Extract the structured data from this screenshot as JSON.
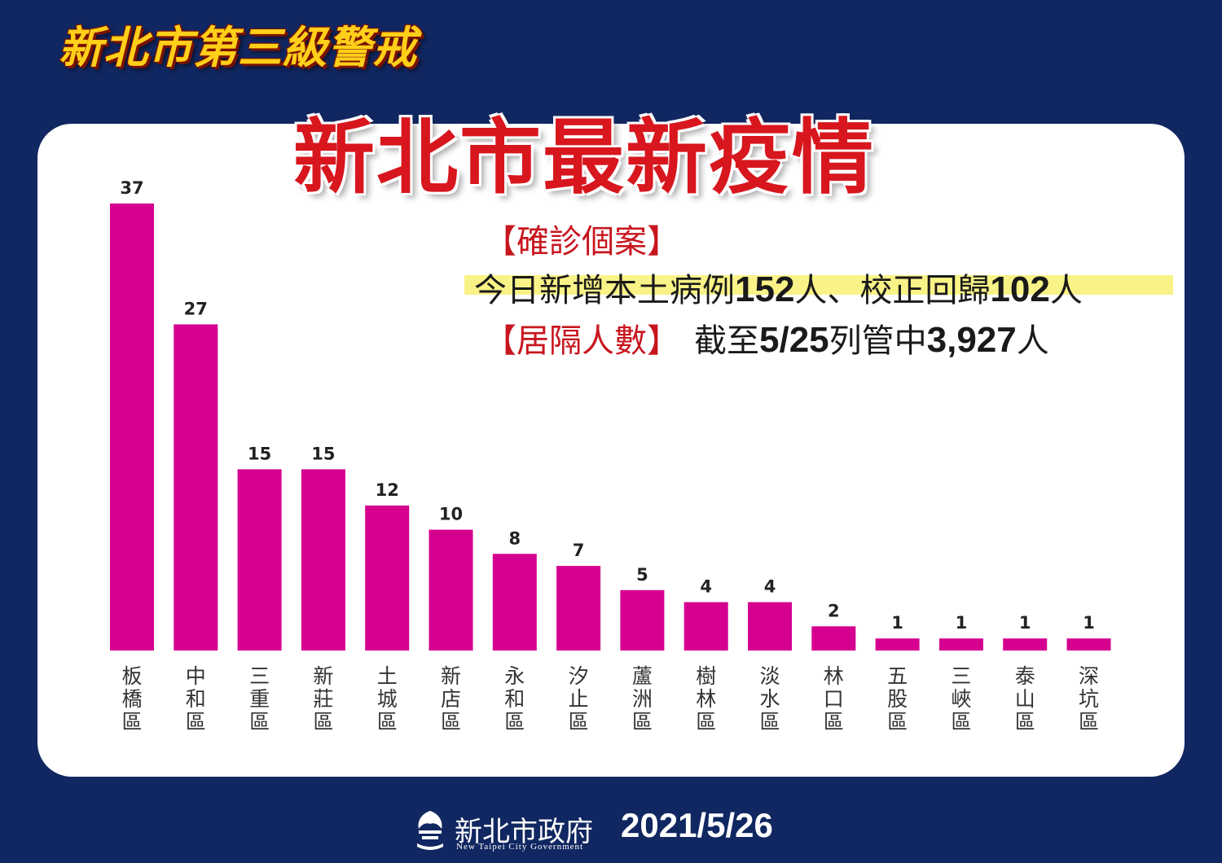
{
  "header": {
    "alert_title": "新北市第三級警戒",
    "main_title": "新北市最新疫情"
  },
  "info": {
    "confirmed_label": "【確診個案】",
    "line_1_prefix": "今日新增本土病例",
    "line_1_num1": "152",
    "line_1_mid": "人、校正回歸",
    "line_1_num2": "102",
    "line_1_suffix": "人",
    "isolation_label": "【居隔人數】",
    "line_2_prefix": "截至",
    "line_2_date": "5/25",
    "line_2_mid": "列管中",
    "line_2_num": "3,927",
    "line_2_suffix": "人"
  },
  "footer": {
    "org_name": "新北市政府",
    "org_name_en": "New Taipei City Government",
    "date": "2021/5/26"
  },
  "colors": {
    "background": "#112761",
    "bar": "#d5008f",
    "title_red": "#d8161e",
    "alert_yellow": "#ffcf1a"
  },
  "chart_data": {
    "type": "bar",
    "categories": [
      "板橋區",
      "中和區",
      "三重區",
      "新莊區",
      "土城區",
      "新店區",
      "永和區",
      "汐止區",
      "蘆洲區",
      "樹林區",
      "淡水區",
      "林口區",
      "五股區",
      "三峽區",
      "泰山區",
      "深坑區"
    ],
    "values": [
      37,
      27,
      15,
      15,
      12,
      10,
      8,
      7,
      5,
      4,
      4,
      2,
      1,
      1,
      1,
      1
    ],
    "ylim": [
      0,
      37
    ],
    "grid": false,
    "legend": "none",
    "data_labels": true
  }
}
